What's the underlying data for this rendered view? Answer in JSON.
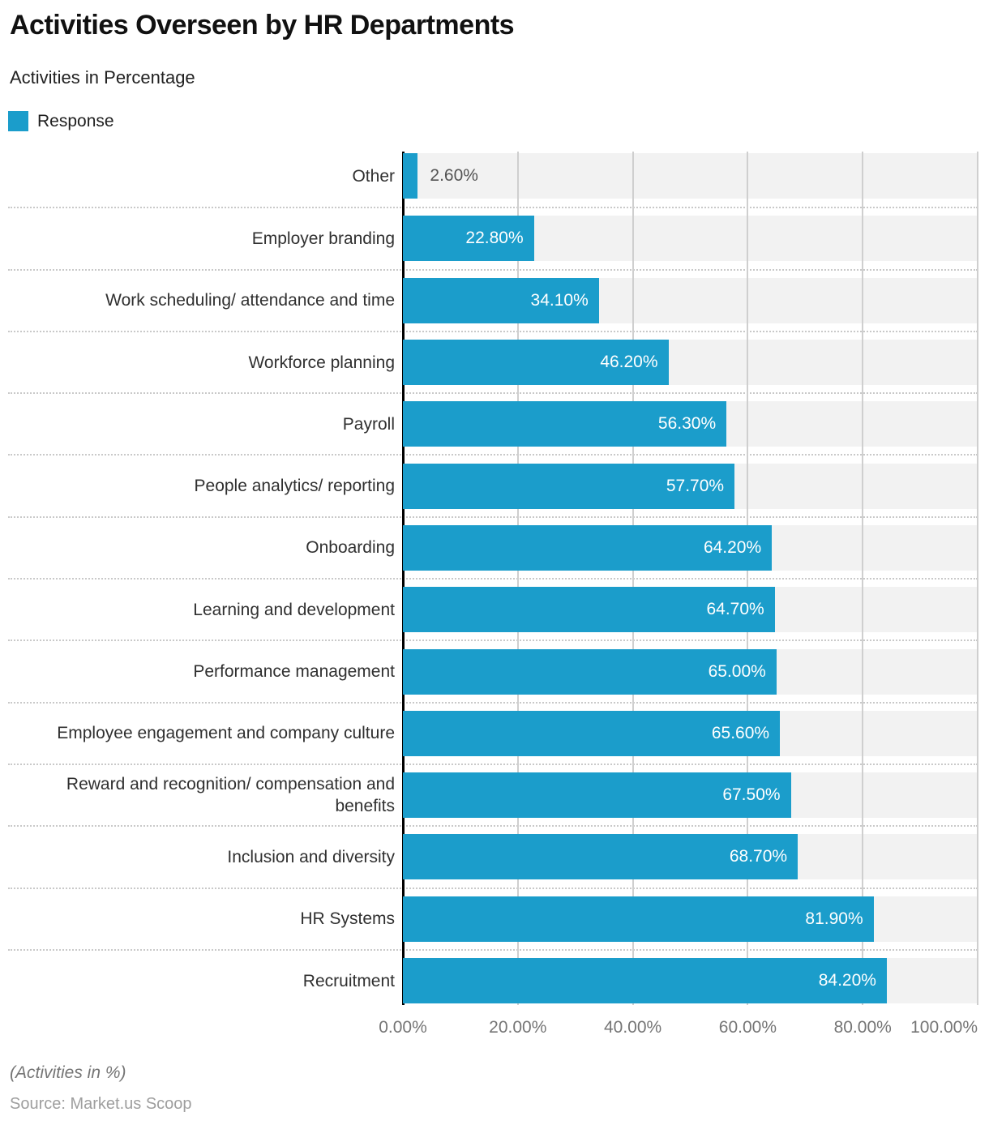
{
  "header": {
    "title": "Activities Overseen by HR Departments",
    "subtitle": "Activities in Percentage"
  },
  "legend": {
    "label": "Response"
  },
  "theme": {
    "bar_color": "#1b9dcb",
    "track_color": "#f2f2f2",
    "gridline_color": "#cfcfcf",
    "axis_line_color": "#000000",
    "outside_label_color": "#545454",
    "inside_label_color": "#ffffff"
  },
  "chart_data": {
    "type": "bar",
    "orientation": "horizontal",
    "title": "Activities Overseen by HR Departments",
    "subtitle": "Activities in Percentage",
    "series_name": "Response",
    "categories": [
      "Other",
      "Employer branding",
      "Work scheduling/ attendance and time",
      "Workforce planning",
      "Payroll",
      "People analytics/ reporting",
      "Onboarding",
      "Learning and development",
      "Performance management",
      "Employee engagement and company culture",
      "Reward and recognition/ compensation and benefits",
      "Inclusion and diversity",
      "HR Systems",
      "Recruitment"
    ],
    "values": [
      2.6,
      22.8,
      34.1,
      46.2,
      56.3,
      57.7,
      64.2,
      64.7,
      65.0,
      65.6,
      67.5,
      68.7,
      81.9,
      84.2
    ],
    "value_labels": [
      "2.60%",
      "22.80%",
      "34.10%",
      "46.20%",
      "56.30%",
      "57.70%",
      "64.20%",
      "64.70%",
      "65.00%",
      "65.60%",
      "67.50%",
      "68.70%",
      "81.90%",
      "84.20%"
    ],
    "xlabel": "",
    "ylabel": "",
    "xlim": [
      0,
      100
    ],
    "x_ticks": [
      "0.00%",
      "20.00%",
      "40.00%",
      "60.00%",
      "80.00%",
      "100.00%"
    ],
    "grid": "vertical-on",
    "legend_position": "top-left"
  },
  "footer": {
    "note": "(Activities in %)",
    "source": "Source: Market.us Scoop"
  }
}
